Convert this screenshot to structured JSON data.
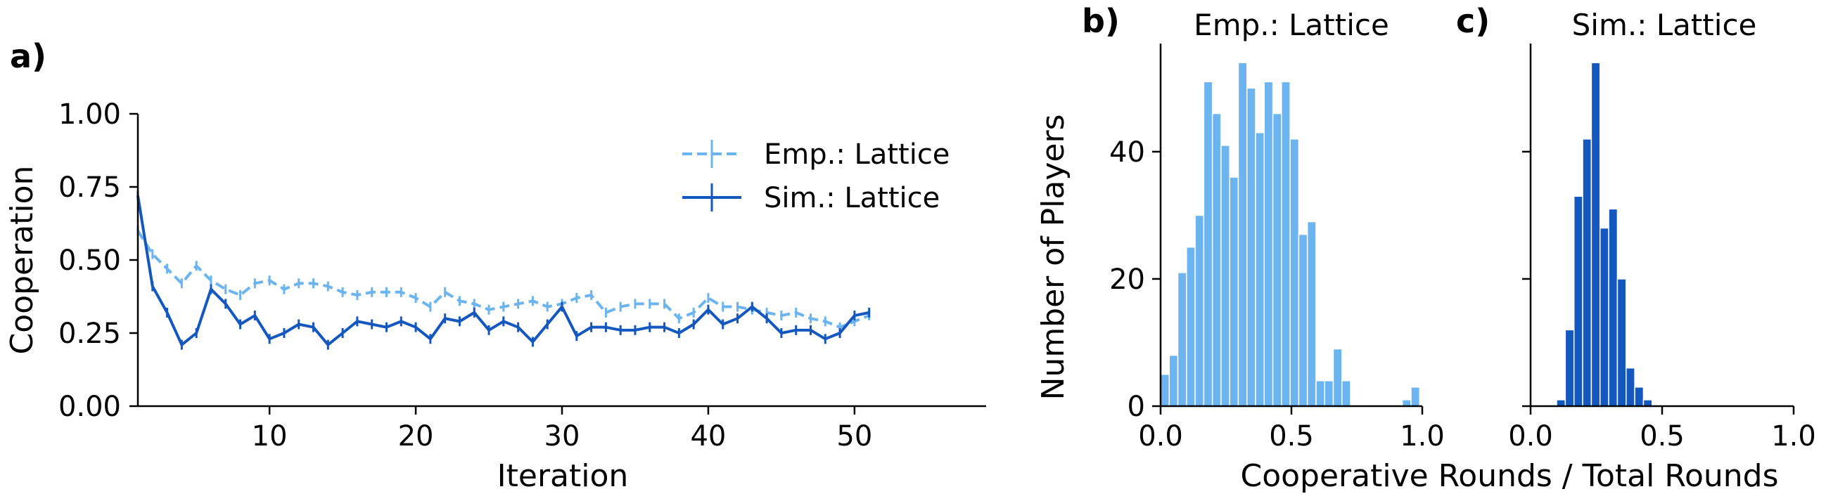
{
  "chart_data": [
    {
      "panel": "a)",
      "type": "line",
      "title": "",
      "xlabel": "Iteration",
      "ylabel": "Cooperation",
      "xlim": [
        1,
        59
      ],
      "ylim": [
        0,
        1
      ],
      "xticks": [
        10,
        20,
        30,
        40,
        50
      ],
      "yticks": [
        "0.00",
        "0.25",
        "0.50",
        "0.75",
        "1.00"
      ],
      "legend_position": "upper-right",
      "series": [
        {
          "name": "Emp.: Lattice",
          "style": "dashed",
          "color": "#6cb4f0",
          "x": [
            1,
            2,
            3,
            4,
            5,
            6,
            7,
            8,
            9,
            10,
            11,
            12,
            13,
            14,
            15,
            16,
            17,
            18,
            19,
            20,
            21,
            22,
            23,
            24,
            25,
            26,
            27,
            28,
            29,
            30,
            31,
            32,
            33,
            34,
            35,
            36,
            37,
            38,
            39,
            40,
            41,
            42,
            43,
            44,
            45,
            46,
            47,
            48,
            49,
            50,
            51
          ],
          "y": [
            0.6,
            0.52,
            0.47,
            0.42,
            0.48,
            0.43,
            0.4,
            0.38,
            0.42,
            0.43,
            0.4,
            0.42,
            0.42,
            0.41,
            0.39,
            0.38,
            0.39,
            0.39,
            0.39,
            0.37,
            0.34,
            0.39,
            0.36,
            0.35,
            0.33,
            0.34,
            0.35,
            0.36,
            0.34,
            0.35,
            0.37,
            0.38,
            0.32,
            0.34,
            0.35,
            0.35,
            0.35,
            0.3,
            0.32,
            0.37,
            0.34,
            0.34,
            0.33,
            0.32,
            0.31,
            0.32,
            0.3,
            0.29,
            0.27,
            0.29,
            0.31
          ]
        },
        {
          "name": "Sim.: Lattice",
          "style": "solid",
          "color": "#1458bf",
          "x": [
            1,
            2,
            3,
            4,
            5,
            6,
            7,
            8,
            9,
            10,
            11,
            12,
            13,
            14,
            15,
            16,
            17,
            18,
            19,
            20,
            21,
            22,
            23,
            24,
            25,
            26,
            27,
            28,
            29,
            30,
            31,
            32,
            33,
            34,
            35,
            36,
            37,
            38,
            39,
            40,
            41,
            42,
            43,
            44,
            45,
            46,
            47,
            48,
            49,
            50,
            51
          ],
          "y": [
            0.72,
            0.41,
            0.32,
            0.21,
            0.25,
            0.4,
            0.35,
            0.28,
            0.31,
            0.23,
            0.25,
            0.28,
            0.27,
            0.21,
            0.25,
            0.29,
            0.28,
            0.27,
            0.29,
            0.27,
            0.23,
            0.3,
            0.29,
            0.32,
            0.26,
            0.29,
            0.27,
            0.22,
            0.28,
            0.34,
            0.24,
            0.27,
            0.27,
            0.26,
            0.26,
            0.27,
            0.27,
            0.25,
            0.28,
            0.33,
            0.28,
            0.3,
            0.34,
            0.3,
            0.25,
            0.26,
            0.26,
            0.23,
            0.25,
            0.31,
            0.32
          ]
        }
      ]
    },
    {
      "panel": "b)",
      "type": "bar",
      "title": "Emp.: Lattice",
      "xlabel": "Cooperative Rounds / Total Rounds",
      "ylabel": "Number of Players",
      "color": "#6cb4f0",
      "xlim": [
        0,
        1
      ],
      "ylim": [
        0,
        57
      ],
      "xticks": [
        "0.0",
        "0.5",
        "1.0"
      ],
      "yticks": [
        0,
        20,
        40
      ],
      "bin_width": 0.033,
      "bin_starts": [
        0.0,
        0.033,
        0.066,
        0.099,
        0.132,
        0.165,
        0.198,
        0.231,
        0.264,
        0.297,
        0.33,
        0.363,
        0.396,
        0.429,
        0.462,
        0.495,
        0.528,
        0.561,
        0.594,
        0.627,
        0.66,
        0.693,
        0.726,
        0.759,
        0.792,
        0.825,
        0.858,
        0.891,
        0.924,
        0.957
      ],
      "values": [
        5,
        8,
        21,
        25,
        30,
        51,
        46,
        41,
        36,
        54,
        50,
        43,
        51,
        46,
        51,
        42,
        27,
        29,
        4,
        4,
        9,
        4,
        0,
        0,
        0,
        0,
        0,
        0,
        1,
        3
      ]
    },
    {
      "panel": "c)",
      "type": "bar",
      "title": "Sim.: Lattice",
      "xlabel": "",
      "ylabel": "",
      "color": "#1458bf",
      "xlim": [
        0,
        1
      ],
      "ylim": [
        0,
        57
      ],
      "xticks": [
        "0.0",
        "0.5",
        "1.0"
      ],
      "yticks": [
        0,
        20,
        40
      ],
      "bin_width": 0.033,
      "bin_starts": [
        0.099,
        0.132,
        0.165,
        0.198,
        0.231,
        0.264,
        0.297,
        0.33,
        0.363,
        0.396,
        0.429,
        0.462,
        0.495
      ],
      "values": [
        1,
        12,
        33,
        42,
        54,
        28,
        31,
        20,
        6,
        3,
        1,
        0,
        0
      ]
    }
  ]
}
